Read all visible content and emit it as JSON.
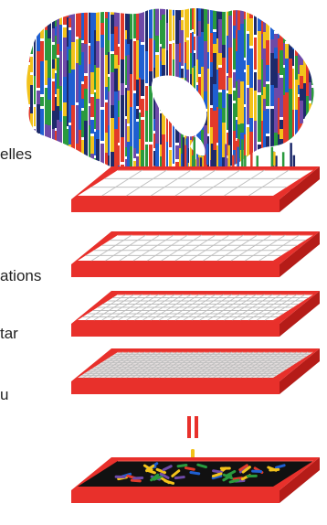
{
  "labels": {
    "fragment_1": "elles",
    "fragment_2": "ations",
    "fragment_3": "tar",
    "fragment_4": "u"
  },
  "colors": {
    "background": "#ffffff",
    "tray_red": "#e8302b",
    "tray_red_dark": "#b51c18",
    "tray_rim_light": "#f05a52",
    "grid_line": "#bfbfbf",
    "grid_fill": "#ffffff",
    "tray_floor_dark": "#111111",
    "strip_colors": [
      "#1f5fd1",
      "#e23a2a",
      "#f2c21b",
      "#2a9a3e",
      "#6e4aa8",
      "#1d2a6b"
    ]
  },
  "icons": {
    "map": "canada-map-barcode-icon",
    "connector": "double-red-bar-icon",
    "drop": "yellow-drop-icon"
  }
}
